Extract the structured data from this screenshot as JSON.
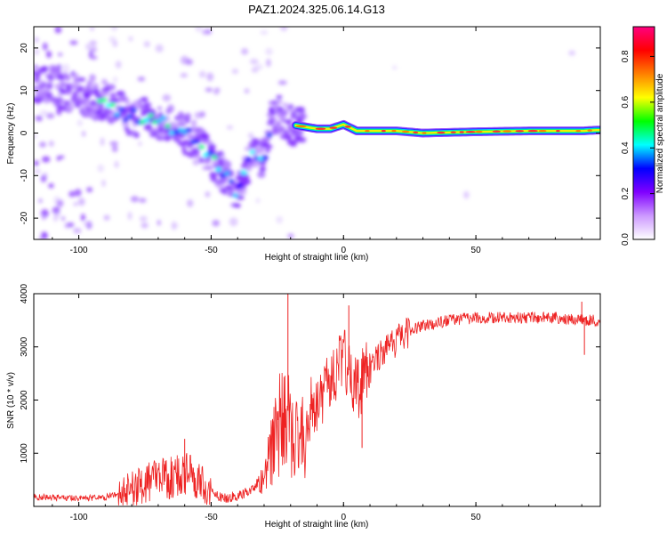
{
  "title": "PAZ1.2024.325.06.14.G13",
  "chart_data": [
    {
      "type": "heatmap",
      "xlabel": "Height of straight line (km)",
      "ylabel": "Frequency (Hz)",
      "xlim": [
        -117,
        97
      ],
      "ylim": [
        -25,
        25
      ],
      "xticks": [
        -100,
        -50,
        0,
        50
      ],
      "yticks": [
        -20,
        -10,
        0,
        10,
        20
      ],
      "grid": false,
      "colorbar": {
        "label": "Normalized spectral amplitude",
        "range": [
          0,
          0.93
        ],
        "ticks": [
          0.0,
          0.2,
          0.4,
          0.6,
          0.8
        ],
        "colors": [
          "#ffffff",
          "#cc99ff",
          "#8000ff",
          "#0000ff",
          "#00ffff",
          "#00ff00",
          "#ffff00",
          "#ff8000",
          "#ff0000",
          "#ff0080"
        ]
      },
      "ridge": [
        {
          "x": -115,
          "y": 12
        },
        {
          "x": -105,
          "y": 10
        },
        {
          "x": -95,
          "y": 8
        },
        {
          "x": -90,
          "y": 7.5
        },
        {
          "x": -85,
          "y": 5
        },
        {
          "x": -80,
          "y": 4
        },
        {
          "x": -75,
          "y": 3.5
        },
        {
          "x": -70,
          "y": 3
        },
        {
          "x": -65,
          "y": 1
        },
        {
          "x": -60,
          "y": 0
        },
        {
          "x": -55,
          "y": -2
        },
        {
          "x": -50,
          "y": -6
        },
        {
          "x": -45,
          "y": -10
        },
        {
          "x": -40,
          "y": -14
        },
        {
          "x": -35,
          "y": -5
        },
        {
          "x": -30,
          "y": -6
        },
        {
          "x": -28,
          "y": 0
        },
        {
          "x": -25,
          "y": 5
        },
        {
          "x": -22,
          "y": 3
        },
        {
          "x": -20,
          "y": 2
        },
        {
          "x": -15,
          "y": 1.5
        },
        {
          "x": -10,
          "y": 1
        },
        {
          "x": -5,
          "y": 1
        },
        {
          "x": 0,
          "y": 2
        },
        {
          "x": 5,
          "y": 0.5
        },
        {
          "x": 10,
          "y": 0.5
        },
        {
          "x": 20,
          "y": 0.5
        },
        {
          "x": 30,
          "y": 0
        },
        {
          "x": 50,
          "y": 0.3
        },
        {
          "x": 70,
          "y": 0.5
        },
        {
          "x": 90,
          "y": 0.5
        },
        {
          "x": 96,
          "y": 0.7
        }
      ]
    },
    {
      "type": "line",
      "xlabel": "Height of straight line (km)",
      "ylabel": "SNR (10 * v/v)",
      "xlim": [
        -117,
        97
      ],
      "ylim": [
        0,
        4000
      ],
      "xticks": [
        -100,
        -50,
        0,
        50
      ],
      "yticks": [
        1000,
        2000,
        3000,
        4000
      ],
      "grid": false,
      "color": "#ee2222",
      "envelope": [
        {
          "x": -117,
          "y": 180
        },
        {
          "x": -100,
          "y": 150
        },
        {
          "x": -90,
          "y": 170
        },
        {
          "x": -85,
          "y": 250
        },
        {
          "x": -80,
          "y": 350
        },
        {
          "x": -70,
          "y": 500
        },
        {
          "x": -60,
          "y": 600
        },
        {
          "x": -55,
          "y": 500
        },
        {
          "x": -50,
          "y": 250
        },
        {
          "x": -45,
          "y": 150
        },
        {
          "x": -40,
          "y": 200
        },
        {
          "x": -35,
          "y": 300
        },
        {
          "x": -30,
          "y": 600
        },
        {
          "x": -25,
          "y": 1800
        },
        {
          "x": -20,
          "y": 1800
        },
        {
          "x": -15,
          "y": 1600
        },
        {
          "x": -12,
          "y": 1900
        },
        {
          "x": -5,
          "y": 2300
        },
        {
          "x": 0,
          "y": 2800
        },
        {
          "x": 5,
          "y": 2200
        },
        {
          "x": 10,
          "y": 2600
        },
        {
          "x": 15,
          "y": 2900
        },
        {
          "x": 20,
          "y": 3100
        },
        {
          "x": 25,
          "y": 3300
        },
        {
          "x": 30,
          "y": 3400
        },
        {
          "x": 40,
          "y": 3500
        },
        {
          "x": 50,
          "y": 3550
        },
        {
          "x": 60,
          "y": 3550
        },
        {
          "x": 70,
          "y": 3550
        },
        {
          "x": 80,
          "y": 3550
        },
        {
          "x": 90,
          "y": 3500
        },
        {
          "x": 97,
          "y": 3500
        }
      ],
      "peaks": [
        {
          "x": -60,
          "y": 1270
        },
        {
          "x": -21,
          "y": 4000
        },
        {
          "x": 2,
          "y": 3780
        },
        {
          "x": 7,
          "y": 1100
        },
        {
          "x": 91,
          "y": 2850
        },
        {
          "x": 90,
          "y": 3850
        }
      ]
    }
  ]
}
